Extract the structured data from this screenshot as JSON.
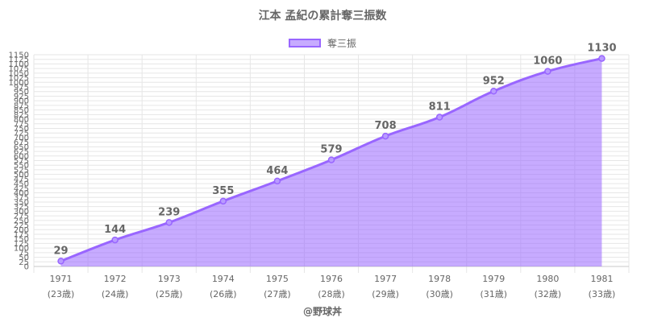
{
  "chart_data": {
    "type": "area",
    "title": "江本 孟紀の累計奪三振数",
    "legend": {
      "position": "top",
      "label": "奪三振"
    },
    "categories": [
      [
        "1971",
        "(23歳)"
      ],
      [
        "1972",
        "(24歳)"
      ],
      [
        "1973",
        "(25歳)"
      ],
      [
        "1974",
        "(26歳)"
      ],
      [
        "1975",
        "(27歳)"
      ],
      [
        "1976",
        "(28歳)"
      ],
      [
        "1977",
        "(29歳)"
      ],
      [
        "1978",
        "(30歳)"
      ],
      [
        "1979",
        "(31歳)"
      ],
      [
        "1980",
        "(32歳)"
      ],
      [
        "1981",
        "(33歳)"
      ]
    ],
    "series": [
      {
        "name": "奪三振",
        "values": [
          29,
          144,
          239,
          355,
          464,
          579,
          708,
          811,
          952,
          1060,
          1130
        ]
      }
    ],
    "ylim": [
      0,
      1150
    ],
    "ytick_step": 25,
    "grid": true,
    "colors": {
      "line": "#9966ff",
      "fill": "rgba(153,102,255,0.55)",
      "grid": "#e6e6e6",
      "text": "#666666"
    }
  },
  "credit": "@野球丼"
}
